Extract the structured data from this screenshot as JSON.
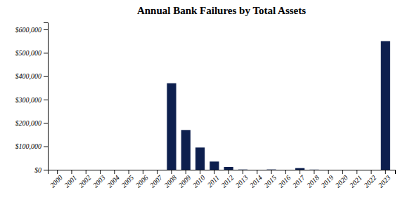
{
  "chart_data": {
    "type": "bar",
    "title": "Annual Bank Failures by Total Assets",
    "categories": [
      "2000",
      "2001",
      "2002",
      "2003",
      "2004",
      "2005",
      "2006",
      "2007",
      "2008",
      "2009",
      "2010",
      "2011",
      "2012",
      "2013",
      "2014",
      "2015",
      "2016",
      "2017",
      "2018",
      "2019",
      "2020",
      "2021",
      "2022",
      "2023"
    ],
    "values": [
      0,
      0,
      0,
      0,
      0,
      0,
      0,
      0,
      370000,
      170000,
      95000,
      35000,
      12000,
      1000,
      0,
      1200,
      0,
      7000,
      600,
      0,
      0,
      0,
      0,
      550000
    ],
    "color": "#0d1f4e",
    "ylim": [
      0,
      630000
    ],
    "yticks": [
      {
        "value": 0,
        "label": "$0"
      },
      {
        "value": 100000,
        "label": "$100,000"
      },
      {
        "value": 200000,
        "label": "$200,000"
      },
      {
        "value": 300000,
        "label": "$300,000"
      },
      {
        "value": 400000,
        "label": "$400,000"
      },
      {
        "value": 500000,
        "label": "$500,000"
      },
      {
        "value": 600000,
        "label": "$600,000"
      }
    ],
    "grid": false
  }
}
